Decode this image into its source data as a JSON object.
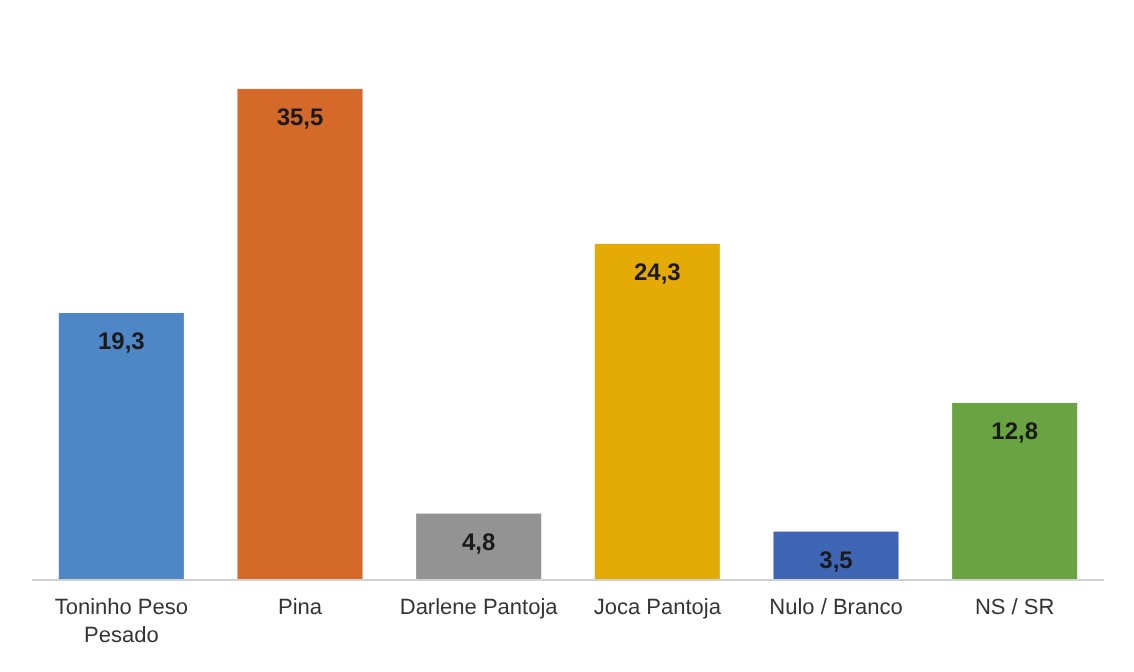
{
  "chart_data": {
    "type": "bar",
    "categories": [
      "Toninho Peso Pesado",
      "Pina",
      "Darlene Pantoja",
      "Joca Pantoja",
      "Nulo / Branco",
      "NS / SR"
    ],
    "values": [
      19.3,
      35.5,
      4.8,
      24.3,
      3.5,
      12.8
    ],
    "colors": [
      "#4f86c6",
      "#d4692a",
      "#939393",
      "#e4aa05",
      "#3f66b5",
      "#6aa341"
    ],
    "value_labels": [
      "19,3",
      "35,5",
      "4,8",
      "24,3",
      "3,5",
      "12,8"
    ]
  }
}
